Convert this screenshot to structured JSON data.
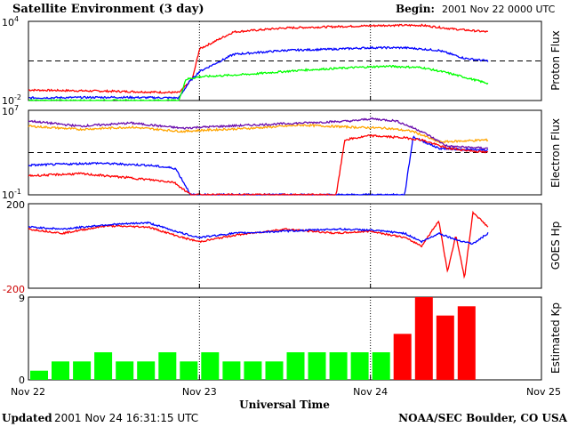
{
  "header": {
    "title": "Satellite Environment (3 day)",
    "begin_label": "Begin:",
    "begin_value": "2001 Nov 22 0000 UTC"
  },
  "footer": {
    "updated_label": "Updated",
    "updated_value": "2001 Nov 24 16:31:15 UTC",
    "source": "NOAA/SEC Boulder, CO USA"
  },
  "x_axis": {
    "title": "Universal Time",
    "unit": "days since 2001 Nov 22 0000 UTC",
    "range": [
      0,
      3
    ],
    "ticks": [
      {
        "label": "Nov 22",
        "value": 0
      },
      {
        "label": "Nov 23",
        "value": 1
      },
      {
        "label": "Nov 24",
        "value": 2
      },
      {
        "label": "Nov 25",
        "value": 3
      }
    ],
    "data_end": 2.6875
  },
  "chart_data": [
    {
      "type": "line",
      "panel": "proton",
      "ylabel": "Proton Flux",
      "scale": "log",
      "ylim_exponent": [
        -2,
        4
      ],
      "y_ticks": [
        {
          "base": "10",
          "exp": "-2",
          "value": -2
        },
        {
          "base": "10",
          "exp": "4",
          "value": 4
        }
      ],
      "threshold": 1,
      "markers": [
        1,
        2
      ],
      "series": [
        {
          "color": "#ff0000",
          "x": [
            0,
            0.5,
            0.88,
            0.92,
            0.96,
            1.0,
            1.2,
            1.5,
            1.8,
            2.1,
            2.3,
            2.5,
            2.6875
          ],
          "y": [
            -1.2,
            -1.3,
            -1.4,
            -0.9,
            -0.3,
            1.9,
            3.2,
            3.5,
            3.6,
            3.7,
            3.7,
            3.4,
            3.2
          ]
        },
        {
          "color": "#0000ff",
          "x": [
            0,
            0.5,
            0.88,
            0.94,
            1.0,
            1.2,
            1.5,
            1.8,
            2.0,
            2.2,
            2.4,
            2.55,
            2.6875
          ],
          "y": [
            -1.8,
            -1.75,
            -1.8,
            -0.6,
            0.2,
            1.5,
            1.8,
            1.9,
            2.0,
            2.0,
            1.8,
            1.2,
            1.0
          ]
        },
        {
          "color": "#00ff00",
          "x": [
            0,
            0.5,
            0.88,
            0.92,
            1.0,
            1.3,
            1.6,
            1.9,
            2.1,
            2.3,
            2.45,
            2.6875
          ],
          "y": [
            -2.0,
            -2.0,
            -2.0,
            -0.4,
            -0.2,
            0.0,
            0.3,
            0.5,
            0.6,
            0.5,
            0.1,
            -0.7
          ]
        }
      ]
    },
    {
      "type": "line",
      "panel": "electron",
      "ylabel": "Electron Flux",
      "scale": "log",
      "ylim_exponent": [
        -1,
        7
      ],
      "y_ticks": [
        {
          "base": "10",
          "exp": "-1",
          "value": -1
        },
        {
          "base": "10",
          "exp": "7",
          "value": 7
        }
      ],
      "threshold": 3,
      "markers": [
        1,
        2
      ],
      "series": [
        {
          "color": "#ffa500",
          "x": [
            0,
            0.3,
            0.6,
            0.9,
            1.0,
            1.3,
            1.6,
            1.9,
            2.1,
            2.25,
            2.4,
            2.6875
          ],
          "y": [
            5.5,
            5.2,
            5.4,
            5.0,
            5.1,
            5.3,
            5.6,
            5.4,
            5.3,
            5.0,
            4.0,
            4.2
          ]
        },
        {
          "color": "#6a0dad",
          "x": [
            0,
            0.3,
            0.6,
            0.9,
            1.0,
            1.3,
            1.6,
            1.9,
            2.0,
            2.15,
            2.3,
            2.45,
            2.6875
          ],
          "y": [
            6.0,
            5.5,
            5.8,
            5.3,
            5.4,
            5.6,
            5.8,
            6.0,
            6.2,
            6.0,
            5.0,
            3.6,
            3.4
          ]
        },
        {
          "color": "#0000ff",
          "x": [
            0,
            0.4,
            0.7,
            0.86,
            0.95,
            1.0,
            1.2,
            1.75,
            1.85,
            2.0,
            2.1,
            2.2,
            2.25,
            2.4,
            2.6875
          ],
          "y": [
            1.8,
            2.0,
            1.8,
            1.5,
            -1.0,
            -1.0,
            -1.0,
            -1.0,
            -1.0,
            -1.0,
            -1.0,
            -1.0,
            4.5,
            3.4,
            3.2
          ]
        },
        {
          "color": "#ff0000",
          "x": [
            0,
            0.3,
            0.6,
            0.85,
            0.95,
            1.0,
            1.4,
            1.7,
            1.8,
            1.85,
            2.0,
            2.2,
            2.3,
            2.45,
            2.6875
          ],
          "y": [
            0.8,
            1.0,
            0.6,
            0.2,
            -1.0,
            -1.0,
            -1.0,
            -1.0,
            -1.0,
            4.2,
            4.6,
            4.4,
            4.2,
            3.4,
            3.0
          ]
        }
      ]
    },
    {
      "type": "line",
      "panel": "goes",
      "ylabel": "GOES Hp",
      "scale": "linear",
      "ylim": [
        -200,
        200
      ],
      "y_ticks": [
        {
          "label": "200",
          "value": 200
        },
        {
          "label": "-200",
          "value": -200
        }
      ],
      "markers": [
        1,
        2
      ],
      "series": [
        {
          "color": "#ff0000",
          "x": [
            0,
            0.2,
            0.45,
            0.7,
            0.9,
            1.0,
            1.2,
            1.5,
            1.8,
            2.0,
            2.2,
            2.3,
            2.4,
            2.45,
            2.5,
            2.55,
            2.6,
            2.6875
          ],
          "y": [
            80,
            60,
            95,
            90,
            40,
            20,
            50,
            80,
            60,
            70,
            40,
            0,
            120,
            -120,
            50,
            -150,
            160,
            90
          ]
        },
        {
          "color": "#0000ff",
          "x": [
            0,
            0.2,
            0.45,
            0.7,
            0.9,
            1.0,
            1.2,
            1.5,
            1.8,
            2.0,
            2.2,
            2.3,
            2.4,
            2.5,
            2.6,
            2.6875
          ],
          "y": [
            90,
            80,
            100,
            110,
            60,
            40,
            60,
            70,
            80,
            75,
            60,
            20,
            60,
            30,
            10,
            60
          ]
        }
      ]
    },
    {
      "type": "bar",
      "panel": "kp",
      "ylabel": "Estimated Kp",
      "ylim": [
        0,
        9
      ],
      "y_ticks": [
        {
          "label": "0",
          "value": 0
        },
        {
          "label": "9",
          "value": 9
        }
      ],
      "markers": [
        1,
        2
      ],
      "bar_width_days": 0.125,
      "values": [
        1,
        2,
        2,
        3,
        2,
        2,
        3,
        2,
        3,
        2,
        2,
        2,
        3,
        3,
        3,
        3,
        3,
        5,
        9,
        7,
        8
      ],
      "colors": {
        "normal": "#00ff00",
        "storm": "#ff0000"
      },
      "storm_threshold": 5
    }
  ]
}
